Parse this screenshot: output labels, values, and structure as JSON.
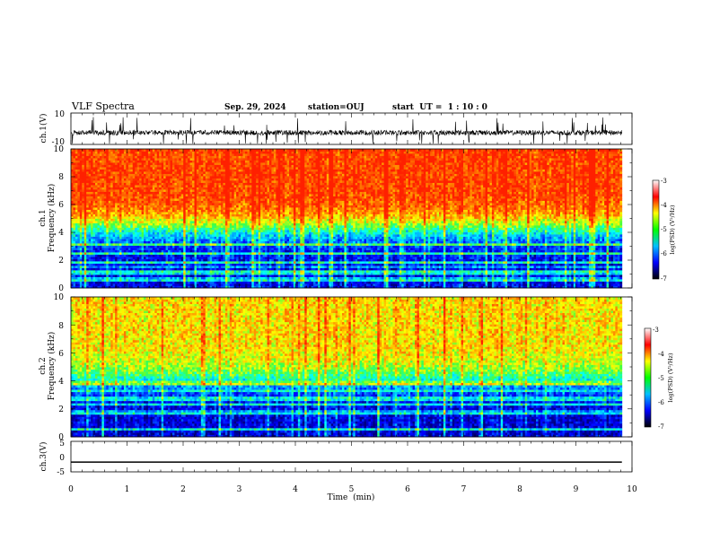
{
  "header": {
    "title": "VLF Spectra",
    "date": "Sep. 29, 2024",
    "station": "station=OUJ",
    "start": "start  UT =  1 : 10 : 0"
  },
  "chart_data": [
    {
      "type": "line",
      "panel": "waveform-ch1",
      "ylabel": "ch.1(V)",
      "ylim": [
        -10,
        10
      ],
      "yticks": [
        "10",
        "-10"
      ],
      "xlim": [
        0,
        10
      ],
      "series": [
        {
          "description": "noisy waveform near -2.5 V with impulsive spikes up to about 8 V / down to -9 V",
          "baseline": -2.5,
          "x_end": 9.82
        }
      ]
    },
    {
      "type": "heatmap",
      "panel": "spectrogram-ch1",
      "ylabel": "ch.1\nFrequency  (kHz)",
      "ylim": [
        0,
        10
      ],
      "yticks": [
        "0",
        "2",
        "4",
        "6",
        "8",
        "10"
      ],
      "xlim": [
        0,
        10
      ],
      "x_end": 9.82,
      "level_profile": {
        "high_above_kHz": 5,
        "transition_kHz": 4.3,
        "levels": [
          -6.5,
          -3.2
        ]
      },
      "colorbar": {
        "label": "log(PSD) (V²/Hz)",
        "range": [
          -7,
          -3
        ],
        "ticks": [
          "-3",
          "-4",
          "-5",
          "-6",
          "-7"
        ]
      }
    },
    {
      "type": "heatmap",
      "panel": "spectrogram-ch2",
      "ylabel": "ch.2\nFrequency  (kHz)",
      "ylim": [
        0,
        10
      ],
      "yticks": [
        "0",
        "2",
        "4",
        "6",
        "8",
        "10"
      ],
      "xlim": [
        0,
        10
      ],
      "x_end": 9.82,
      "level_profile": {
        "high_above_kHz": 5,
        "transition_kHz": 4.0,
        "levels": [
          -6.6,
          -4.0
        ]
      },
      "colorbar": {
        "label": "log(PSD) (V²/Hz)",
        "range": [
          -7,
          -3
        ],
        "ticks": [
          "-3",
          "-4",
          "-5",
          "-6",
          "-7"
        ]
      }
    },
    {
      "type": "line",
      "panel": "waveform-ch3",
      "ylabel": "ch.3(V)",
      "ylim": [
        -5,
        5
      ],
      "yticks": [
        "5",
        "0",
        "-5"
      ],
      "xlim": [
        0,
        10
      ],
      "xlabel": "Time  (min)",
      "xticks": [
        "0",
        "1",
        "2",
        "3",
        "4",
        "5",
        "6",
        "7",
        "8",
        "9",
        "10"
      ],
      "series": [
        {
          "description": "flat line",
          "value": -1.8,
          "x_end": 9.82
        }
      ]
    }
  ],
  "colors": {
    "colormap": [
      "#000080",
      "#0000ff",
      "#0080ff",
      "#00ffff",
      "#40ff40",
      "#ffff00",
      "#ff8000",
      "#ff2000"
    ],
    "colorbar_map": [
      "#000000",
      "#0000ff",
      "#00c0ff",
      "#00ff00",
      "#ffff00",
      "#ff0000",
      "#ffffff"
    ],
    "line": "#000000"
  }
}
